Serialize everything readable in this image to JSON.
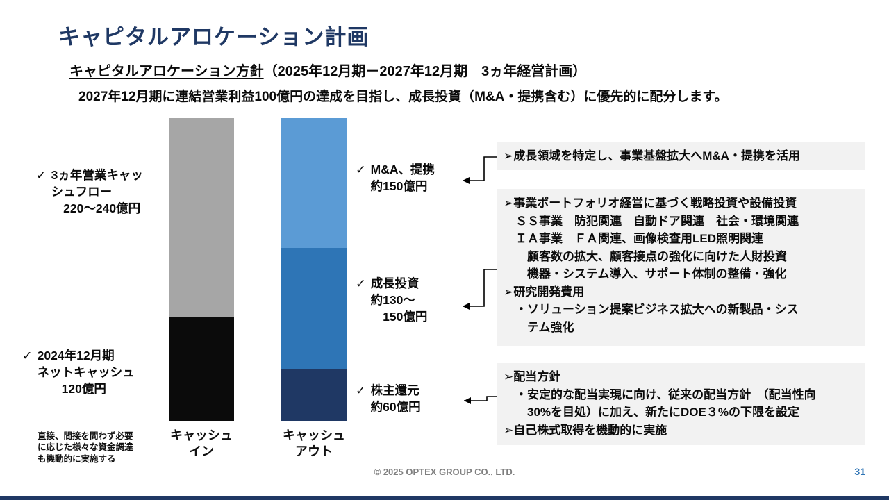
{
  "colors": {
    "accent_navy": "#1F3864",
    "page_number_blue": "#2E74B5",
    "box_bg": "#F2F2F2",
    "gray_segment": "#A6A6A6",
    "black_segment": "#0B0B0B",
    "light_blue_segment": "#5B9BD5",
    "mid_blue_segment": "#2E75B6",
    "navy_segment": "#1F3864"
  },
  "header": {
    "title": "キャピタルアロケーション計画",
    "policy_label": "キャピタルアロケーション方針",
    "policy_period": "（2025年12月期－2027年12月期　3ヵ年経営計画）",
    "lead": "2027年12月期に連結営業利益100億円の達成を目指し、成長投資（M&A・提携含む）に優先的に配分します。"
  },
  "chart_data": {
    "type": "bar",
    "stacked": true,
    "orientation": "vertical",
    "unit": "億円",
    "categories": [
      "キャッシュイン",
      "キャッシュアウト"
    ],
    "bars": [
      {
        "category": "キャッシュイン",
        "label_lines": [
          "キャッシュ",
          "イン"
        ],
        "segments": [
          {
            "key": "operating-cashflow",
            "name": "3ヵ年営業キャッシュフロー",
            "value_label": "220～240億円",
            "value": 230,
            "color": "#A6A6A6"
          },
          {
            "key": "net-cash",
            "name": "2024年12月期ネットキャッシュ",
            "value_label": "120億円",
            "value": 120,
            "color": "#0B0B0B"
          }
        ]
      },
      {
        "category": "キャッシュアウト",
        "label_lines": [
          "キャッシュ",
          "アウト"
        ],
        "segments": [
          {
            "key": "ma-alliance",
            "name": "M&A、提携",
            "value_label": "約150億円",
            "value": 150,
            "color": "#5B9BD5"
          },
          {
            "key": "growth-investment",
            "name": "成長投資",
            "value_label": "約130～150億円",
            "value": 140,
            "color": "#2E75B6"
          },
          {
            "key": "shareholder-return",
            "name": "株主還元",
            "value_label": "約60億円",
            "value": 60,
            "color": "#1F3864"
          }
        ]
      }
    ]
  },
  "annotations": {
    "operating_cashflow": {
      "check": "✓",
      "lines": [
        "3ヵ年営業キャッ",
        "シュフロー",
        "　220～240億円"
      ]
    },
    "net_cash": {
      "check": "✓",
      "lines": [
        "2024年12月期",
        "ネットキャッシュ",
        "　　120億円"
      ]
    },
    "funding_note_lines": [
      "直接、間接を問わず必要",
      "に応じた様々な資金調達",
      "も機動的に実施する"
    ],
    "ma_alliance": {
      "check": "✓",
      "lines": [
        "M&A、提携",
        "約150億円"
      ]
    },
    "growth_investment": {
      "check": "✓",
      "lines": [
        "成長投資",
        "約130～",
        "　150億円"
      ]
    },
    "shareholder_return": {
      "check": "✓",
      "lines": [
        "株主還元",
        "約60億円"
      ]
    }
  },
  "notes": {
    "ma_box_lines": [
      "➢成長領域を特定し、事業基盤拡大へM&A・提携を活用"
    ],
    "growth_box_lines": [
      "➢事業ポートフォリオ経営に基づく戦略投資や設備投資",
      "　ＳＳ事業　防犯関連　自動ドア関連　社会・環境関連",
      "　ＩＡ事業　ＦＡ関連、画像検査用LED照明関連",
      "　　顧客数の拡大、顧客接点の強化に向けた人財投資",
      "　　機器・システム導入、サポート体制の整備・強化",
      "➢研究開発費用",
      "　・ソリューション提案ビジネス拡大への新製品・シス",
      "　　テム強化"
    ],
    "dividend_box_lines": [
      "➢配当方針",
      "　・安定的な配当実現に向け、従来の配当方針　（配当性向",
      "　　30%を目処）に加え、新たにDOE３%の下限を設定",
      "➢自己株式取得を機動的に実施"
    ]
  },
  "footer": {
    "copyright": "© 2025 OPTEX GROUP CO., LTD.",
    "page_number": "31"
  }
}
